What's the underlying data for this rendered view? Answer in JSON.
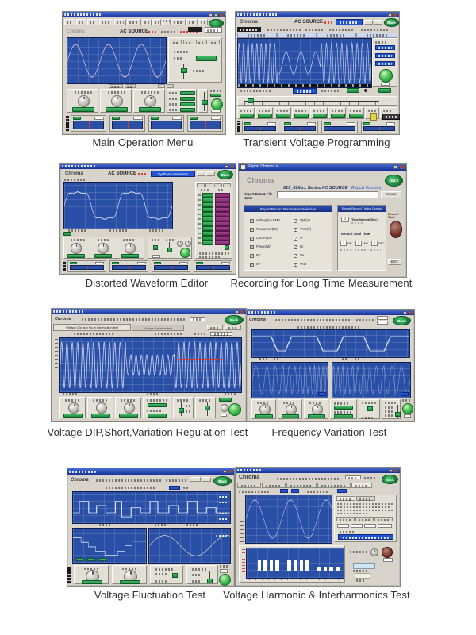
{
  "common": {
    "chroma_logo": "Chroma",
    "ac_source": "AC SOURCE",
    "back_label": "Back"
  },
  "figures": [
    {
      "caption": "Main Operation Menu"
    },
    {
      "caption": "Transient Voltage Programming"
    },
    {
      "caption": "Distorted Waveform Editor",
      "synthesis_button": "Synthesis Waveform"
    },
    {
      "caption": "Recording for Long Time Measurement",
      "dialog": {
        "window_title": "Report Chroma.vi",
        "series_title": "615_61Mxx Series AC SOURCE",
        "report_function": "Report Function",
        "file_label": "Report Data & File Name",
        "browse_label": "Browse",
        "params_header": "Report Record Parameters Selection",
        "timing_header": "Report Record Timing Control",
        "checks_left": [
          "Voltage(V) RMS",
          "Frequency(Hz)",
          "Current(A)",
          "Power(W)",
          "PF",
          "CF"
        ],
        "checks_right": [
          "Vpk(V)",
          "THD(V)",
          "IP",
          "IS",
          "VA",
          "VAR"
        ],
        "interval_value": "1",
        "interval_label": "Time Interval(Sec)",
        "total_time_label": "Record Total Time",
        "hr_value": "1",
        "hr_unit": "HR",
        "min_value": "0",
        "min_unit": "MIN",
        "sec_value": "0",
        "sec_unit": "SEC",
        "record_start_label": "Record Start",
        "exit_label": "EXIT"
      }
    },
    {
      "caption": "Voltage DIP,Short,Variation Regulation Test",
      "tabs": [
        "Voltage Dip and Short Interruption test",
        "Voltage Variation test"
      ]
    },
    {
      "caption": "Frequency Variation Test"
    },
    {
      "caption": "Voltage Fluctuation Test"
    },
    {
      "caption": "Voltage Harmonic & Interharmonics Test",
      "harmonic_bars": [
        55,
        55,
        55,
        55,
        0,
        55,
        55,
        55,
        55,
        0,
        22,
        22,
        22,
        22
      ]
    }
  ]
}
